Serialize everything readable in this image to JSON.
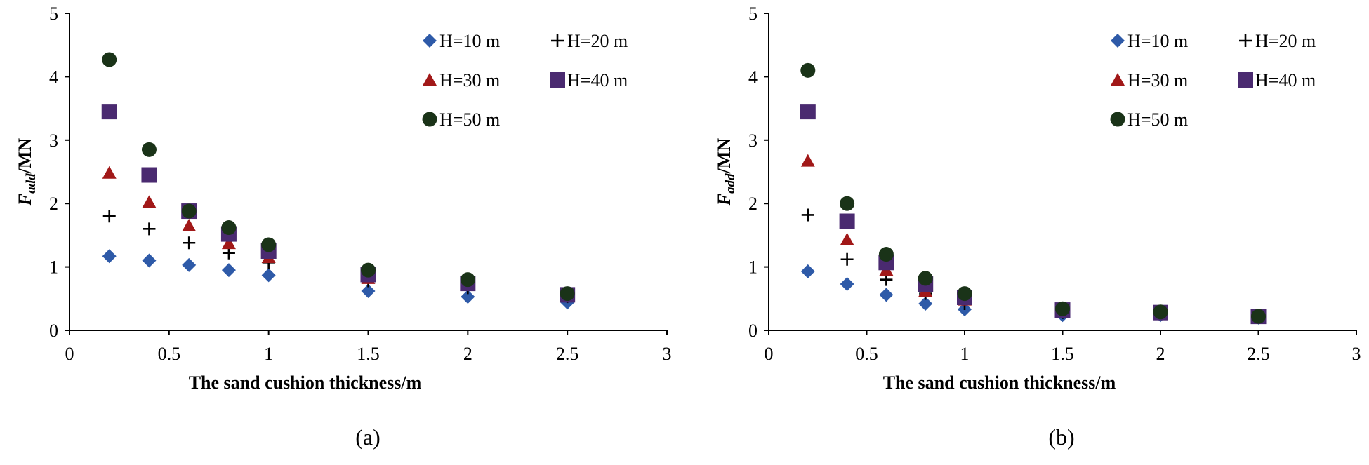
{
  "colors": {
    "H10": "#2e5aa8",
    "H20": "#000000",
    "H30": "#a11818",
    "H40": "#4a2a70",
    "H50": "#1a3318"
  },
  "chart_data": [
    {
      "type": "scatter",
      "panel_label": "(a)",
      "xlabel": "The sand cushion thickness/m",
      "ylabel_main": "F",
      "ylabel_sub": "add",
      "ylabel_unit": "/MN",
      "xlim": [
        0,
        3
      ],
      "ylim": [
        0,
        5
      ],
      "x_ticks": [
        0,
        0.5,
        1,
        1.5,
        2,
        2.5,
        3
      ],
      "x_tick_labels": [
        "0",
        "0.5",
        "1",
        "1.5",
        "2",
        "2.5",
        "3"
      ],
      "y_ticks": [
        0,
        1,
        2,
        3,
        4,
        5
      ],
      "y_tick_labels": [
        "0",
        "1",
        "2",
        "3",
        "4",
        "5"
      ],
      "legend_position": "top-right",
      "x": [
        0.2,
        0.4,
        0.6,
        0.8,
        1.0,
        1.5,
        2.0,
        2.5
      ],
      "series": [
        {
          "name": "H=10 m",
          "marker": "diamond",
          "color_key": "H10",
          "values": [
            1.17,
            1.1,
            1.03,
            0.95,
            0.87,
            0.62,
            0.53,
            0.44
          ]
        },
        {
          "name": "H=20 m",
          "marker": "plus",
          "color_key": "H20",
          "values": [
            1.8,
            1.6,
            1.38,
            1.22,
            1.07,
            0.78,
            0.67,
            0.53
          ]
        },
        {
          "name": "H=30 m",
          "marker": "triangle",
          "color_key": "H30",
          "values": [
            2.48,
            2.02,
            1.65,
            1.37,
            1.15,
            0.82,
            0.71,
            0.57
          ]
        },
        {
          "name": "H=40 m",
          "marker": "square",
          "color_key": "H40",
          "values": [
            3.45,
            2.45,
            1.88,
            1.52,
            1.25,
            0.88,
            0.74,
            0.56
          ]
        },
        {
          "name": "H=50 m",
          "marker": "circle",
          "color_key": "H50",
          "values": [
            4.27,
            2.85,
            1.88,
            1.62,
            1.35,
            0.95,
            0.8,
            0.58
          ]
        }
      ]
    },
    {
      "type": "scatter",
      "panel_label": "(b)",
      "xlabel": "The sand cushion thickness/m",
      "ylabel_main": "F",
      "ylabel_sub": "add",
      "ylabel_unit": "/MN",
      "xlim": [
        0,
        3
      ],
      "ylim": [
        0,
        5
      ],
      "x_ticks": [
        0,
        0.5,
        1,
        1.5,
        2,
        2.5,
        3
      ],
      "x_tick_labels": [
        "0",
        "0.5",
        "1",
        "1.5",
        "2",
        "2.5",
        "3"
      ],
      "y_ticks": [
        0,
        1,
        2,
        3,
        4,
        5
      ],
      "y_tick_labels": [
        "0",
        "1",
        "2",
        "3",
        "4",
        "5"
      ],
      "legend_position": "top-right",
      "x": [
        0.2,
        0.4,
        0.6,
        0.8,
        1.0,
        1.5,
        2.0,
        2.5
      ],
      "series": [
        {
          "name": "H=10 m",
          "marker": "diamond",
          "color_key": "H10",
          "values": [
            0.93,
            0.73,
            0.56,
            0.42,
            0.33,
            0.24,
            0.24,
            0.2
          ]
        },
        {
          "name": "H=20 m",
          "marker": "plus",
          "color_key": "H20",
          "values": [
            1.82,
            1.12,
            0.8,
            0.58,
            0.42,
            0.28,
            0.26,
            0.21
          ]
        },
        {
          "name": "H=30 m",
          "marker": "triangle",
          "color_key": "H30",
          "values": [
            2.67,
            1.43,
            0.95,
            0.62,
            0.48,
            0.3,
            0.27,
            0.21
          ]
        },
        {
          "name": "H=40 m",
          "marker": "square",
          "color_key": "H40",
          "values": [
            3.45,
            1.72,
            1.07,
            0.73,
            0.52,
            0.32,
            0.28,
            0.22
          ]
        },
        {
          "name": "H=50 m",
          "marker": "circle",
          "color_key": "H50",
          "values": [
            4.1,
            2.0,
            1.2,
            0.82,
            0.58,
            0.34,
            0.29,
            0.22
          ]
        }
      ]
    }
  ]
}
